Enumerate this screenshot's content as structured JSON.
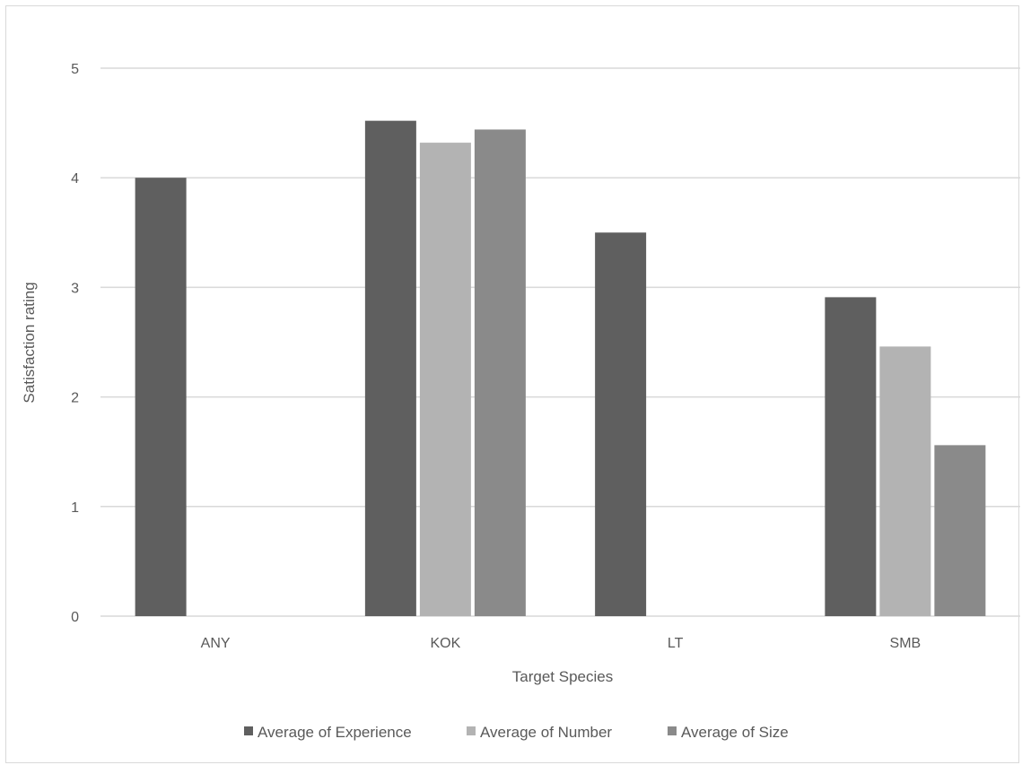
{
  "chart_data": {
    "type": "bar",
    "title": "",
    "xlabel": "Target Species",
    "ylabel": "Satisfaction rating",
    "categories": [
      "ANY",
      "KOK",
      "LT",
      "SMB"
    ],
    "ylim": [
      0,
      5
    ],
    "yticks": [
      0,
      1,
      2,
      3,
      4,
      5
    ],
    "grid": true,
    "legend_position": "bottom",
    "series": [
      {
        "name": "Average of Experience",
        "color": "#5f5f5f",
        "values": [
          4.0,
          4.52,
          3.5,
          2.91
        ]
      },
      {
        "name": "Average of Number",
        "color": "#b3b3b3",
        "values": [
          null,
          4.32,
          null,
          2.46
        ]
      },
      {
        "name": "Average of Size",
        "color": "#8a8a8a",
        "values": [
          null,
          4.44,
          null,
          1.56
        ]
      }
    ]
  }
}
